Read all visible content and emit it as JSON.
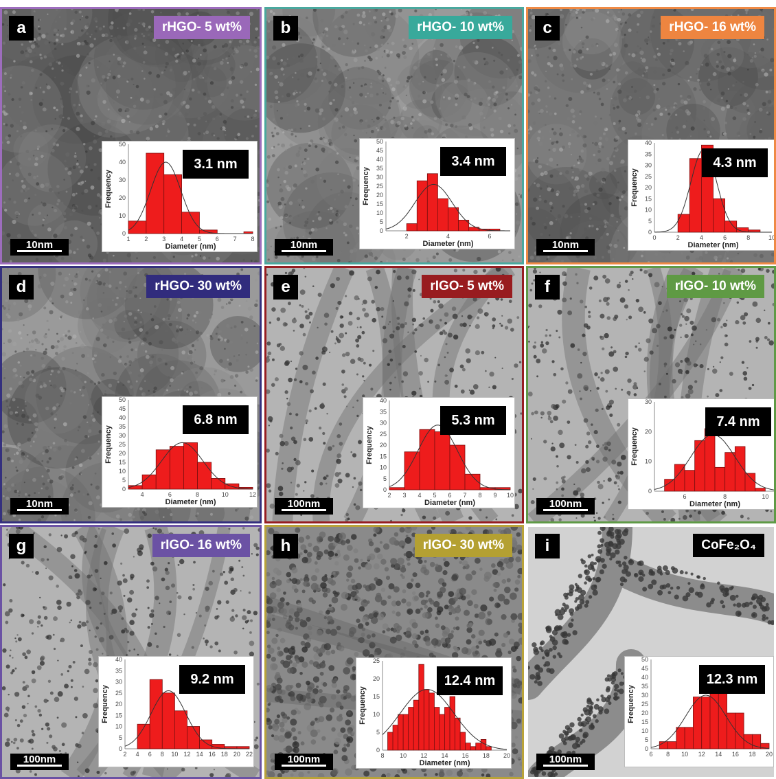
{
  "panels": [
    {
      "id": "a",
      "label": "a",
      "sample": "rHGO- 5 wt%",
      "sample_color": "#9a68b9",
      "border_color": "#9d6dbd",
      "tone": "dark",
      "scale": "10nm",
      "size": "3.1 nm",
      "chart_data": {
        "type": "bar",
        "xlabel": "Diameter (nm)",
        "ylabel": "Frequency",
        "xlim": [
          1,
          8
        ],
        "ylim": [
          0,
          50
        ],
        "xticks": [
          1,
          2,
          3,
          4,
          5,
          6,
          7,
          8
        ],
        "yticks": [
          0,
          10,
          20,
          30,
          40,
          50
        ],
        "bins": [
          [
            1,
            2
          ],
          [
            2,
            3
          ],
          [
            3,
            4
          ],
          [
            4,
            5
          ],
          [
            5,
            6
          ],
          [
            7.5,
            8
          ]
        ],
        "values": [
          7,
          45,
          33,
          12,
          2,
          1
        ],
        "fit": {
          "mean": 3.1,
          "peak": 40,
          "sigma": 0.85
        }
      }
    },
    {
      "id": "b",
      "label": "b",
      "sample": "rHGO- 10 wt%",
      "sample_color": "#38a99b",
      "border_color": "#4aa89e",
      "tone": "light",
      "scale": "10nm",
      "size": "3.4 nm",
      "chart_data": {
        "type": "bar",
        "xlabel": "Diameter (nm)",
        "ylabel": "Frequency",
        "xlim": [
          1,
          7
        ],
        "ylim": [
          0,
          50
        ],
        "xticks": [
          2,
          4,
          6
        ],
        "yticks": [
          0,
          5,
          10,
          15,
          20,
          25,
          30,
          35,
          40,
          45,
          50
        ],
        "bins": [
          [
            2,
            2.5
          ],
          [
            2.5,
            3
          ],
          [
            3,
            3.5
          ],
          [
            3.5,
            4
          ],
          [
            4,
            4.5
          ],
          [
            4.5,
            5
          ],
          [
            5,
            5.5
          ],
          [
            5.5,
            6
          ],
          [
            6,
            6.5
          ]
        ],
        "values": [
          4,
          28,
          32,
          18,
          13,
          6,
          2,
          1,
          1
        ],
        "fit": {
          "mean": 3.3,
          "peak": 26,
          "sigma": 0.9
        }
      }
    },
    {
      "id": "c",
      "label": "c",
      "sample": "rHGO- 16 wt%",
      "sample_color": "#ee8540",
      "border_color": "#ef8a45",
      "tone": "mid",
      "scale": "10nm",
      "size": "4.3 nm",
      "chart_data": {
        "type": "bar",
        "xlabel": "Diameter (nm)",
        "ylabel": "Frequency",
        "xlim": [
          0,
          10
        ],
        "ylim": [
          0,
          40
        ],
        "xticks": [
          0,
          2,
          4,
          6,
          8,
          10
        ],
        "yticks": [
          0,
          5,
          10,
          15,
          20,
          25,
          30,
          35,
          40
        ],
        "bins": [
          [
            2,
            3
          ],
          [
            3,
            4
          ],
          [
            4,
            5
          ],
          [
            5,
            6
          ],
          [
            6,
            7
          ],
          [
            7,
            8
          ],
          [
            8,
            9
          ]
        ],
        "values": [
          8,
          33,
          39,
          15,
          5,
          2,
          1
        ],
        "fit": {
          "mean": 4.2,
          "peak": 37,
          "sigma": 1.1
        }
      }
    },
    {
      "id": "d",
      "label": "d",
      "sample": "rHGO- 30 wt%",
      "sample_color": "#312c7d",
      "border_color": "#34307e",
      "tone": "light",
      "scale": "10nm",
      "size": "6.8 nm",
      "chart_data": {
        "type": "bar",
        "xlabel": "Diameter (nm)",
        "ylabel": "Frequency",
        "xlim": [
          3,
          12
        ],
        "ylim": [
          0,
          50
        ],
        "xticks": [
          4,
          6,
          8,
          10,
          12
        ],
        "yticks": [
          0,
          5,
          10,
          15,
          20,
          25,
          30,
          35,
          40,
          45,
          50
        ],
        "bins": [
          [
            3,
            4
          ],
          [
            4,
            5
          ],
          [
            5,
            6
          ],
          [
            6,
            7
          ],
          [
            7,
            8
          ],
          [
            8,
            9
          ],
          [
            9,
            10
          ],
          [
            10,
            11
          ],
          [
            11,
            12
          ]
        ],
        "values": [
          2,
          8,
          22,
          24,
          26,
          15,
          6,
          3,
          1
        ],
        "fit": {
          "mean": 6.9,
          "peak": 26,
          "sigma": 1.5
        }
      }
    },
    {
      "id": "e",
      "label": "e",
      "sample": "rIGO- 5 wt%",
      "sample_color": "#981c1f",
      "border_color": "#961d21",
      "tone": "mesh",
      "scale": "100nm",
      "size": "5.3 nm",
      "chart_data": {
        "type": "bar",
        "xlabel": "Diameter (nm)",
        "ylabel": "Frequency",
        "xlim": [
          2,
          10
        ],
        "ylim": [
          0,
          40
        ],
        "xticks": [
          2,
          3,
          4,
          5,
          6,
          7,
          8,
          9,
          10
        ],
        "yticks": [
          0,
          5,
          10,
          15,
          20,
          25,
          30,
          35,
          40
        ],
        "bins": [
          [
            2,
            3
          ],
          [
            3,
            4
          ],
          [
            4,
            5
          ],
          [
            5,
            6
          ],
          [
            6,
            7
          ],
          [
            7,
            8
          ],
          [
            8,
            9
          ],
          [
            9,
            10
          ]
        ],
        "values": [
          1,
          17,
          27,
          26,
          20,
          7,
          1,
          1
        ],
        "fit": {
          "mean": 5.2,
          "peak": 29,
          "sigma": 1.3
        }
      }
    },
    {
      "id": "f",
      "label": "f",
      "sample": "rIGO- 10 wt%",
      "sample_color": "#5f9a44",
      "border_color": "#5f9a46",
      "tone": "mesh",
      "scale": "100nm",
      "size": "7.4 nm",
      "chart_data": {
        "type": "bar",
        "xlabel": "Diameter (nm)",
        "ylabel": "Frequency",
        "xlim": [
          4.5,
          10.5
        ],
        "ylim": [
          0,
          30
        ],
        "xticks": [
          6,
          8,
          10
        ],
        "yticks": [
          0,
          10,
          20,
          30
        ],
        "bins": [
          [
            5,
            5.5
          ],
          [
            5.5,
            6
          ],
          [
            6,
            6.5
          ],
          [
            6.5,
            7
          ],
          [
            7,
            7.5
          ],
          [
            7.5,
            8
          ],
          [
            8,
            8.5
          ],
          [
            8.5,
            9
          ],
          [
            9,
            9.5
          ],
          [
            9.5,
            10
          ]
        ],
        "values": [
          4,
          9,
          7,
          17,
          21,
          8,
          13,
          15,
          6,
          1
        ],
        "fit": {
          "mean": 7.4,
          "peak": 19,
          "sigma": 1.1
        }
      }
    },
    {
      "id": "g",
      "label": "g",
      "sample": "rIGO- 16 wt%",
      "sample_color": "#6b52a4",
      "border_color": "#6b52a4",
      "tone": "mesh",
      "scale": "100nm",
      "size": "9.2 nm",
      "chart_data": {
        "type": "bar",
        "xlabel": "",
        "ylabel": "Frequency",
        "xlim": [
          2,
          22
        ],
        "ylim": [
          0,
          40
        ],
        "xticks": [
          2,
          4,
          6,
          8,
          10,
          12,
          14,
          16,
          18,
          20,
          22
        ],
        "yticks": [
          0,
          5,
          10,
          15,
          20,
          25,
          30,
          35,
          40
        ],
        "bins": [
          [
            4,
            6
          ],
          [
            6,
            8
          ],
          [
            8,
            10
          ],
          [
            10,
            12
          ],
          [
            12,
            14
          ],
          [
            14,
            16
          ],
          [
            16,
            18
          ],
          [
            18,
            20
          ],
          [
            20,
            22
          ]
        ],
        "values": [
          11,
          31,
          25,
          17,
          10,
          4,
          2,
          1,
          1
        ],
        "fit": {
          "mean": 9.0,
          "peak": 26,
          "sigma": 2.8
        }
      }
    },
    {
      "id": "h",
      "label": "h",
      "sample": "rIGO- 30 wt%",
      "sample_color": "#b4a032",
      "border_color": "#b9a33a",
      "tone": "particles",
      "scale": "100nm",
      "size": "12.4 nm",
      "chart_data": {
        "type": "bar",
        "xlabel": "Diameter (nm)",
        "ylabel": "Frequency",
        "xlim": [
          8,
          20
        ],
        "ylim": [
          0,
          25
        ],
        "xticks": [
          8,
          10,
          12,
          14,
          16,
          18,
          20
        ],
        "yticks": [
          0,
          5,
          10,
          15,
          20,
          25
        ],
        "bins": [
          [
            8.5,
            9
          ],
          [
            9,
            9.5
          ],
          [
            9.5,
            10
          ],
          [
            10,
            10.5
          ],
          [
            10.5,
            11
          ],
          [
            11,
            11.5
          ],
          [
            11.5,
            12
          ],
          [
            12,
            12.5
          ],
          [
            12.5,
            13
          ],
          [
            13,
            13.5
          ],
          [
            13.5,
            14
          ],
          [
            14,
            14.5
          ],
          [
            14.5,
            15
          ],
          [
            15,
            15.5
          ],
          [
            15.5,
            16
          ],
          [
            16,
            16.5
          ],
          [
            16.5,
            17
          ],
          [
            17,
            17.5
          ],
          [
            17.5,
            18
          ],
          [
            18,
            18.5
          ]
        ],
        "values": [
          5,
          7,
          10,
          10,
          12,
          14,
          24,
          17,
          16,
          12,
          10,
          12,
          15,
          9,
          5,
          2,
          1,
          2,
          3,
          1
        ],
        "fit": {
          "mean": 12.3,
          "peak": 17,
          "sigma": 2.6
        }
      }
    },
    {
      "id": "i",
      "label": "i",
      "sample": "CoFe₂O₄",
      "sample_color": "#000000",
      "border_color": "#ffffff",
      "tone": "web",
      "scale": "100nm",
      "size": "12.3 nm",
      "chart_data": {
        "type": "bar",
        "xlabel": "",
        "ylabel": "Frequency",
        "xlim": [
          6,
          20
        ],
        "ylim": [
          0,
          50
        ],
        "xticks": [
          6,
          8,
          10,
          12,
          14,
          16,
          18,
          20
        ],
        "yticks": [
          0,
          5,
          10,
          15,
          20,
          25,
          30,
          35,
          40,
          45,
          50
        ],
        "bins": [
          [
            7,
            8
          ],
          [
            8,
            9
          ],
          [
            9,
            10
          ],
          [
            10,
            11
          ],
          [
            11,
            12
          ],
          [
            12,
            13
          ],
          [
            13,
            14
          ],
          [
            14,
            15
          ],
          [
            15,
            16
          ],
          [
            16,
            17
          ],
          [
            17,
            18
          ],
          [
            18,
            19
          ],
          [
            19,
            20
          ]
        ],
        "values": [
          4,
          4,
          12,
          12,
          29,
          29,
          31,
          31,
          20,
          20,
          8,
          8,
          3
        ],
        "fit": {
          "mean": 12.5,
          "peak": 30,
          "sigma": 2.4
        }
      }
    }
  ]
}
